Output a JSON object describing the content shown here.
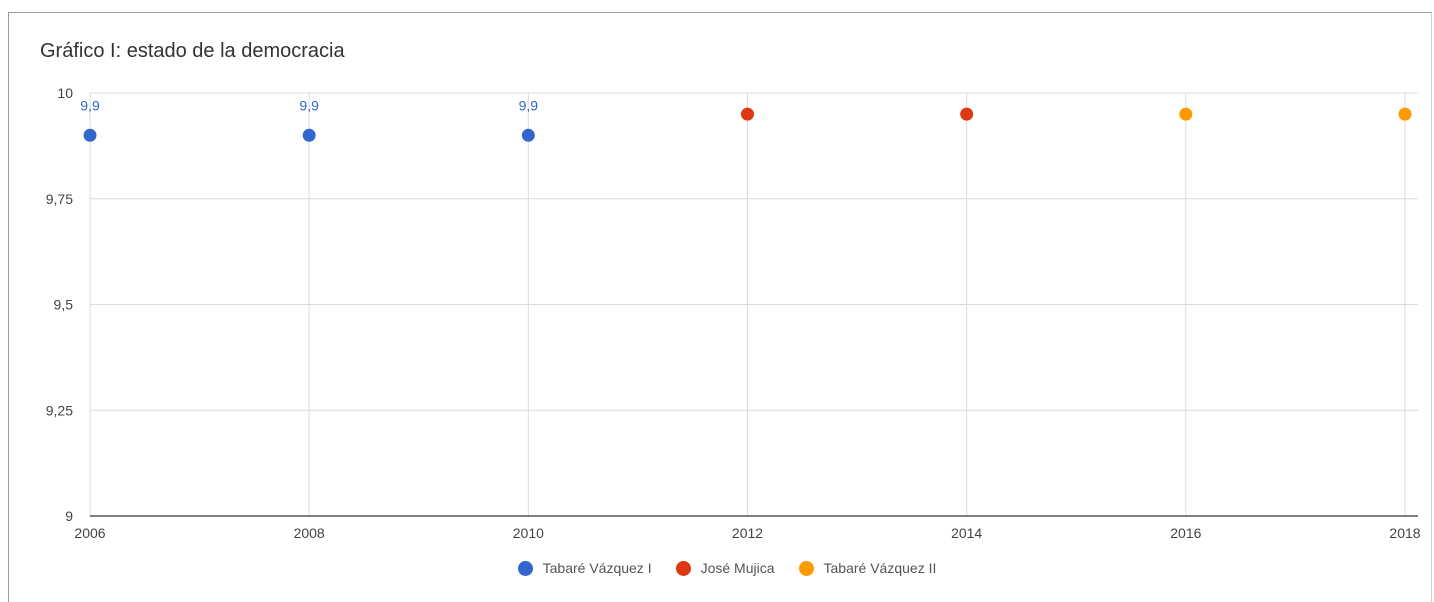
{
  "chart_data": {
    "type": "scatter",
    "title": "Gráfico I: estado de la democracia",
    "xlabel": "",
    "ylabel": "",
    "xlim": [
      2006,
      2018
    ],
    "ylim": [
      9,
      10
    ],
    "x_ticks": [
      "2006",
      "2008",
      "2010",
      "2012",
      "2014",
      "2016",
      "2018"
    ],
    "y_ticks": [
      "9",
      "9,25",
      "9,5",
      "9,75",
      "10"
    ],
    "grid": true,
    "legend_position": "bottom",
    "series": [
      {
        "name": "Tabaré Vázquez I",
        "color": "#3366cc",
        "x": [
          2006,
          2008,
          2010
        ],
        "y": [
          9.9,
          9.9,
          9.9
        ],
        "labels": [
          "9,9",
          "9,9",
          "9,9"
        ]
      },
      {
        "name": "José Mujica",
        "color": "#dc3912",
        "x": [
          2012,
          2014
        ],
        "y": [
          9.95,
          9.95
        ],
        "labels": []
      },
      {
        "name": "Tabaré Vázquez II",
        "color": "#ff9900",
        "x": [
          2016,
          2018
        ],
        "y": [
          9.95,
          9.95
        ],
        "labels": []
      }
    ]
  }
}
